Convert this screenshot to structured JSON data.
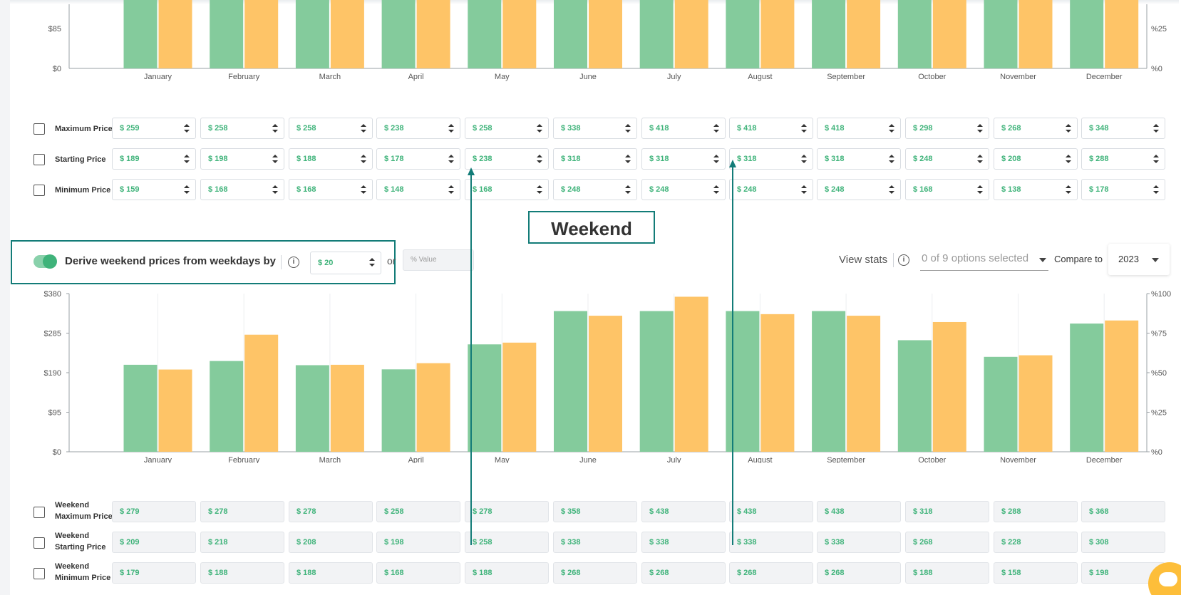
{
  "top_chart": {
    "y_ticks": [
      "$85",
      "$0"
    ],
    "y2_ticks": [
      "%25",
      "%0"
    ]
  },
  "weekday_rows": [
    {
      "label": "Maximum Price",
      "values": [
        "$ 259",
        "$ 258",
        "$ 258",
        "$ 238",
        "$ 258",
        "$ 338",
        "$ 418",
        "$ 418",
        "$ 418",
        "$ 298",
        "$ 268",
        "$ 348"
      ]
    },
    {
      "label": "Starting Price",
      "values": [
        "$ 189",
        "$ 198",
        "$ 188",
        "$ 178",
        "$ 238",
        "$ 318",
        "$ 318",
        "$ 318",
        "$ 318",
        "$ 248",
        "$ 208",
        "$ 288"
      ]
    },
    {
      "label": "Minimum Price",
      "values": [
        "$ 159",
        "$ 168",
        "$ 168",
        "$ 148",
        "$ 168",
        "$ 248",
        "$ 248",
        "$ 248",
        "$ 248",
        "$ 168",
        "$ 138",
        "$ 178"
      ]
    }
  ],
  "weekend_heading": "Weekend",
  "derive": {
    "label": "Derive weekend prices from weekdays by",
    "info_icon": "i",
    "amount": "$ 20",
    "or_text": "or",
    "percent_placeholder": "% Value"
  },
  "stats": {
    "view_stats_label": "View stats",
    "info_icon": "i",
    "options_placeholder": "0 of 9 options selected",
    "compare_label": "Compare to",
    "compare_year": "2023"
  },
  "weekend_rows": [
    {
      "label_line1": "Weekend",
      "label_line2": "Maximum Price",
      "values": [
        "$ 279",
        "$ 278",
        "$ 278",
        "$ 258",
        "$ 278",
        "$ 358",
        "$ 438",
        "$ 438",
        "$ 438",
        "$ 318",
        "$ 288",
        "$ 368"
      ]
    },
    {
      "label_line1": "Weekend",
      "label_line2": "Starting Price",
      "values": [
        "$ 209",
        "$ 218",
        "$ 208",
        "$ 198",
        "$ 258",
        "$ 338",
        "$ 338",
        "$ 338",
        "$ 338",
        "$ 268",
        "$ 228",
        "$ 308"
      ]
    },
    {
      "label_line1": "Weekend",
      "label_line2": "Minimum Price",
      "values": [
        "$ 179",
        "$ 188",
        "$ 188",
        "$ 168",
        "$ 188",
        "$ 268",
        "$ 268",
        "$ 268",
        "$ 268",
        "$ 188",
        "$ 158",
        "$ 198"
      ]
    }
  ],
  "colors": {
    "green_bar": "#84cb9c",
    "orange_bar": "#fec467",
    "accent_teal": "#137c78",
    "value_green": "#3fb37a"
  },
  "chart_data": [
    {
      "type": "bar",
      "categories": [
        "January",
        "February",
        "March",
        "April",
        "May",
        "June",
        "July",
        "August",
        "September",
        "October",
        "November",
        "December"
      ],
      "y_ticks": [
        "$0",
        "$85"
      ],
      "y2_ticks": [
        "%0",
        "%25"
      ],
      "series": [
        {
          "color": "#84cb9c",
          "values": [
            null,
            null,
            null,
            null,
            null,
            null,
            null,
            null,
            null,
            null,
            null,
            null
          ]
        },
        {
          "color": "#fec467",
          "values": [
            null,
            null,
            null,
            null,
            null,
            null,
            null,
            null,
            null,
            null,
            null,
            null
          ]
        }
      ],
      "note_cropped": true
    },
    {
      "type": "bar",
      "categories": [
        "January",
        "February",
        "March",
        "April",
        "May",
        "June",
        "July",
        "August",
        "September",
        "October",
        "November",
        "December"
      ],
      "ylim": [
        0,
        380
      ],
      "y_ticks": [
        "$0",
        "$95",
        "$190",
        "$285",
        "$380"
      ],
      "y2lim": [
        0,
        100
      ],
      "y2_ticks": [
        "%0",
        "%25",
        "%50",
        "%75",
        "%100"
      ],
      "grid": "vertical",
      "series": [
        {
          "color": "#84cb9c",
          "values": [
            209,
            218,
            208,
            198,
            258,
            338,
            338,
            338,
            338,
            268,
            228,
            308
          ]
        },
        {
          "color": "#fec467",
          "values": [
            52,
            74,
            55,
            56,
            69,
            86,
            98,
            87,
            86,
            82,
            61,
            83
          ],
          "axis": "right"
        }
      ]
    }
  ]
}
